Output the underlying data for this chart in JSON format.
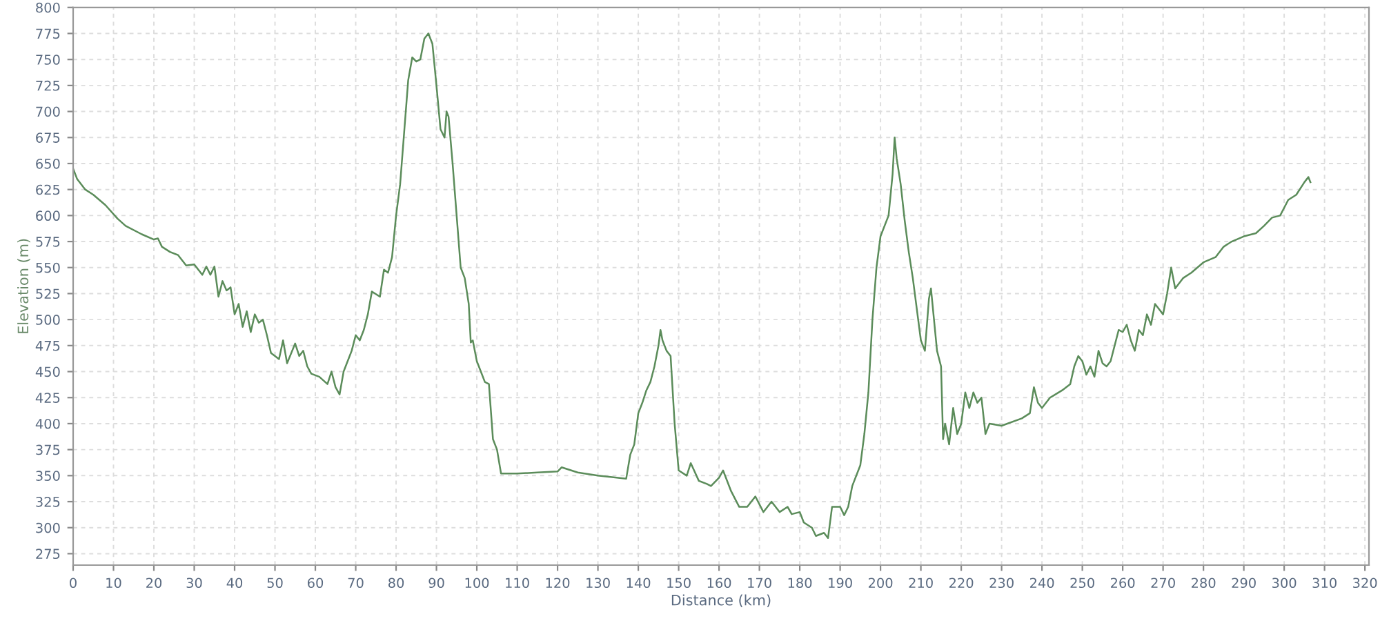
{
  "chart_data": {
    "type": "line",
    "xlabel": "Distance (km)",
    "ylabel": "Elevation (m)",
    "xlim": [
      0,
      321
    ],
    "ylim": [
      264,
      800
    ],
    "xticks": [
      0,
      10,
      20,
      30,
      40,
      50,
      60,
      70,
      80,
      90,
      100,
      110,
      120,
      130,
      140,
      150,
      160,
      170,
      180,
      190,
      200,
      210,
      220,
      230,
      240,
      250,
      260,
      270,
      280,
      290,
      300,
      310,
      320
    ],
    "yticks": [
      275,
      300,
      325,
      350,
      375,
      400,
      425,
      450,
      475,
      500,
      525,
      550,
      575,
      600,
      625,
      650,
      675,
      700,
      725,
      750,
      775,
      800
    ],
    "grid": true,
    "marker": "none",
    "line_style": "solid",
    "series": [
      {
        "color": "#5b8c5a",
        "x": [
          0,
          1,
          3,
          5,
          8,
          11,
          13,
          17,
          20,
          21,
          22,
          24,
          26,
          28,
          30,
          31,
          32,
          33,
          34,
          35,
          36,
          37,
          38,
          39,
          40,
          41,
          42,
          43,
          44,
          45,
          46,
          47,
          48,
          49,
          51,
          52,
          53,
          55,
          56,
          57,
          58,
          59,
          61,
          63,
          64,
          65,
          66,
          67,
          69,
          70,
          71,
          72,
          73,
          74,
          76,
          77,
          78,
          79,
          80,
          81,
          82,
          83,
          84,
          85,
          86,
          87,
          88,
          89,
          90,
          91,
          92,
          92.5,
          93,
          94,
          95,
          96,
          97,
          98,
          98.5,
          99,
          100,
          101,
          102,
          103,
          104,
          105,
          106,
          110,
          115,
          120,
          121,
          125,
          130,
          137,
          138,
          139,
          140,
          141,
          142,
          143,
          144,
          145,
          145.5,
          146,
          147,
          148,
          149,
          150,
          152,
          153,
          155,
          157,
          158,
          160,
          161,
          163,
          165,
          167,
          169,
          171,
          173,
          175,
          177,
          178,
          180,
          181,
          183,
          184,
          186,
          187,
          188,
          190,
          191,
          192,
          193,
          195,
          196,
          197,
          198,
          199,
          200,
          202,
          203,
          203.5,
          204,
          205,
          206,
          207,
          208,
          210,
          211,
          212,
          212.5,
          213,
          214,
          215,
          215.5,
          216,
          217,
          218,
          219,
          220,
          221,
          222,
          223,
          224,
          225,
          226,
          227,
          230,
          235,
          237,
          238,
          239,
          240,
          242,
          245,
          247,
          248,
          249,
          250,
          251,
          252,
          253,
          254,
          255,
          256,
          257,
          258,
          259,
          260,
          261,
          262,
          263,
          264,
          265,
          266,
          267,
          268,
          269,
          270,
          271,
          272,
          273,
          275,
          277,
          280,
          283,
          285,
          287,
          290,
          293,
          295,
          297,
          299,
          301,
          303,
          305,
          306,
          306.5
        ],
        "values": [
          645,
          635,
          625,
          620,
          610,
          597,
          590,
          582,
          577,
          578,
          570,
          565,
          562,
          552,
          553,
          548,
          543,
          551,
          543,
          551,
          522,
          537,
          528,
          531,
          505,
          515,
          493,
          508,
          488,
          505,
          497,
          500,
          485,
          468,
          462,
          480,
          458,
          477,
          465,
          470,
          455,
          448,
          445,
          438,
          450,
          435,
          428,
          450,
          470,
          485,
          480,
          490,
          505,
          527,
          522,
          548,
          545,
          560,
          600,
          630,
          680,
          730,
          752,
          748,
          750,
          770,
          775,
          765,
          725,
          683,
          675,
          700,
          695,
          650,
          600,
          550,
          540,
          515,
          478,
          480,
          460,
          450,
          440,
          438,
          385,
          375,
          352,
          352,
          353,
          354,
          358,
          353,
          350,
          347,
          370,
          380,
          410,
          420,
          432,
          440,
          455,
          475,
          490,
          480,
          470,
          465,
          400,
          355,
          350,
          362,
          345,
          342,
          340,
          348,
          355,
          335,
          320,
          320,
          330,
          315,
          325,
          315,
          320,
          313,
          315,
          305,
          300,
          292,
          295,
          290,
          320,
          320,
          312,
          320,
          340,
          360,
          390,
          430,
          500,
          550,
          580,
          600,
          640,
          675,
          655,
          630,
          595,
          565,
          540,
          480,
          470,
          520,
          530,
          510,
          470,
          455,
          385,
          400,
          380,
          415,
          390,
          400,
          430,
          415,
          430,
          420,
          425,
          390,
          400,
          398,
          405,
          410,
          435,
          420,
          415,
          425,
          432,
          438,
          455,
          465,
          460,
          447,
          455,
          445,
          470,
          458,
          455,
          460,
          475,
          490,
          488,
          495,
          480,
          470,
          490,
          485,
          505,
          495,
          515,
          510,
          505,
          525,
          550,
          530,
          540,
          545,
          555,
          560,
          570,
          575,
          580,
          583,
          590,
          598,
          600,
          615,
          620,
          632,
          637,
          632
        ]
      }
    ]
  }
}
